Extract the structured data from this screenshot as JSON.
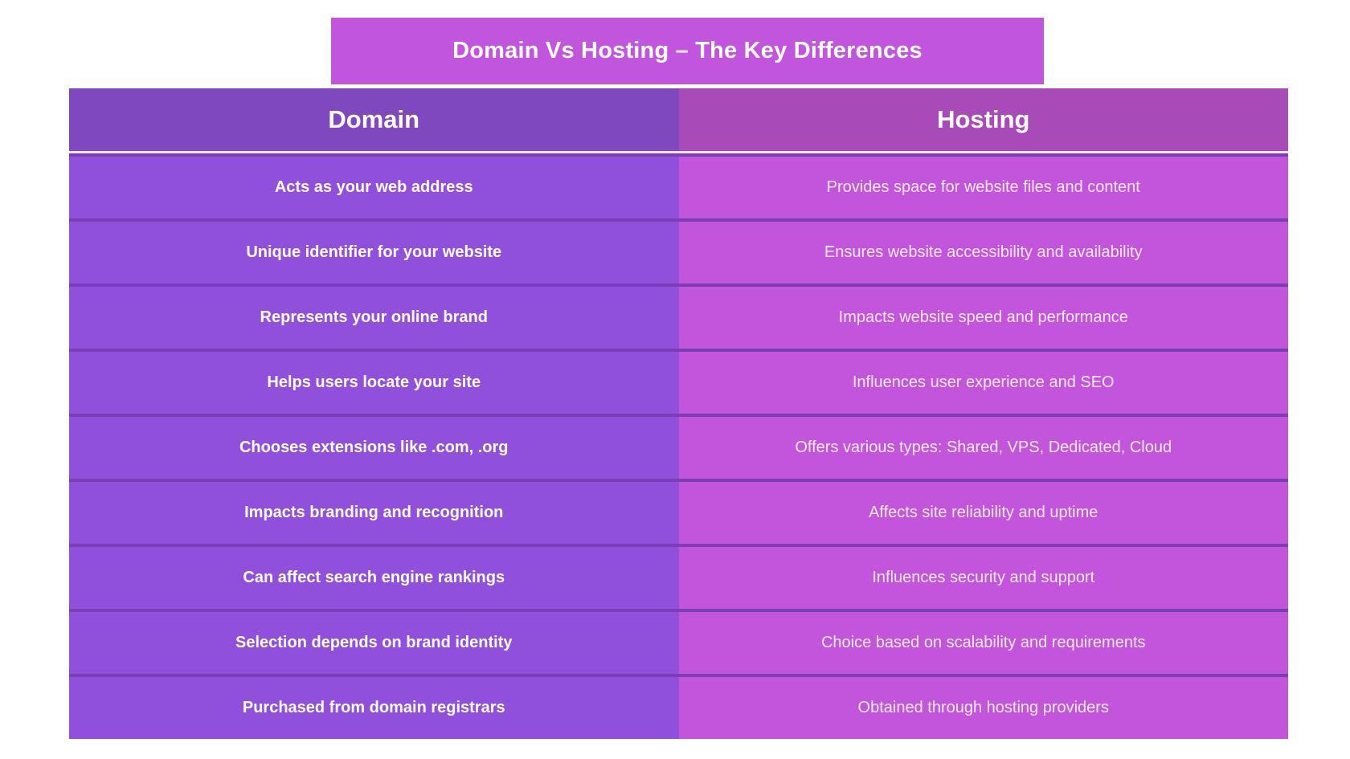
{
  "title": "Domain Vs Hosting – The Key Differences",
  "headers": {
    "domain": "Domain",
    "hosting": "Hosting"
  },
  "rows": [
    {
      "domain": "Acts as your web address",
      "hosting": "Provides space for website files and content"
    },
    {
      "domain": "Unique identifier for your website",
      "hosting": "Ensures website accessibility and availability"
    },
    {
      "domain": "Represents your online brand",
      "hosting": "Impacts website speed and performance"
    },
    {
      "domain": "Helps users locate your site",
      "hosting": "Influences user experience and SEO"
    },
    {
      "domain": "Chooses extensions like .com, .org",
      "hosting": "Offers various types: Shared, VPS, Dedicated, Cloud"
    },
    {
      "domain": "Impacts branding and recognition",
      "hosting": "Affects site reliability and uptime"
    },
    {
      "domain": "Can affect search engine rankings",
      "hosting": "Influences security and support"
    },
    {
      "domain": "Selection depends on brand identity",
      "hosting": "Choice based on scalability and requirements"
    },
    {
      "domain": "Purchased from domain registrars",
      "hosting": "Obtained through hosting providers"
    }
  ],
  "colors": {
    "title_bg": "#c255dd",
    "domain_header_bg": "#8048be",
    "hosting_header_bg": "#a84ab8",
    "domain_cell_bg": "#9150dc",
    "hosting_cell_bg": "#c355dd",
    "row_separator": "#7a3fb6"
  }
}
